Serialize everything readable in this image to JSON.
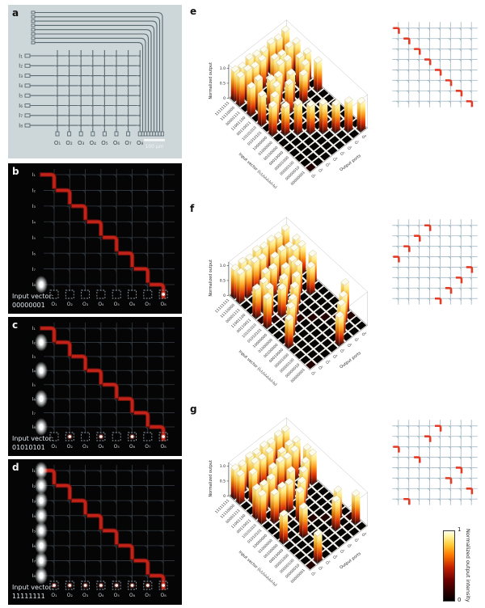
{
  "panels": {
    "a": {
      "label": "a",
      "input_labels": [
        "I₁",
        "I₂",
        "I₃",
        "I₄",
        "I₅",
        "I₆",
        "I₇",
        "I₈"
      ],
      "output_labels": [
        "O₁",
        "O₂",
        "O₃",
        "O₄",
        "O₅",
        "O₆",
        "O₇",
        "O₈"
      ],
      "scale_bar": "100 μm"
    },
    "b": {
      "label": "b",
      "caption": "Input vector:",
      "vector": "00000001",
      "input_labels": [
        "I₁",
        "I₂",
        "I₃",
        "I₄",
        "I₅",
        "I₆",
        "I₇",
        "I₈"
      ],
      "output_labels": [
        "O₁",
        "O₂",
        "O₃",
        "O₄",
        "O₅",
        "O₆",
        "O₇",
        "O₈"
      ],
      "active_inputs": [
        8
      ],
      "active_outputs": [
        8
      ]
    },
    "c": {
      "label": "c",
      "caption": "Input vector:",
      "vector": "01010101",
      "input_labels": [
        "I₁",
        "I₂",
        "I₃",
        "I₄",
        "I₅",
        "I₆",
        "I₇",
        "I₈"
      ],
      "output_labels": [
        "O₁",
        "O₂",
        "O₃",
        "O₄",
        "O₅",
        "O₆",
        "O₇",
        "O₈"
      ],
      "active_inputs": [
        2,
        4,
        6,
        8
      ],
      "active_outputs": [
        2,
        4,
        6,
        8
      ]
    },
    "d": {
      "label": "d",
      "caption": "Input vector:",
      "vector": "11111111",
      "input_labels": [
        "I₁",
        "I₂",
        "I₃",
        "I₄",
        "I₅",
        "I₆",
        "I₇",
        "I₈"
      ],
      "output_labels": [
        "O₁",
        "O₂",
        "O₃",
        "O₄",
        "O₅",
        "O₆",
        "O₇",
        "O₈"
      ],
      "active_inputs": [
        1,
        2,
        3,
        4,
        5,
        6,
        7,
        8
      ],
      "active_outputs": [
        1,
        2,
        3,
        4,
        5,
        6,
        7,
        8
      ]
    }
  },
  "chart_data": [
    {
      "label": "e",
      "type": "bar3d",
      "zlabel": "Normalized output",
      "ylabel": "Input vector (I₁I₂I₃I₄I₅I₆I₇I₈)",
      "xlabel": "Output ports",
      "zticks": [
        "0",
        "0.5",
        "1.0"
      ],
      "zlim": [
        0,
        1
      ],
      "output_ports": [
        "O₁",
        "O₂",
        "O₃",
        "O₄",
        "O₅",
        "O₆",
        "O₇",
        "O₈"
      ],
      "input_vectors": [
        "11111111",
        "11110000",
        "00001111",
        "11001100",
        "00110011",
        "10101010",
        "01010101",
        "10000000",
        "01000000",
        "00100000",
        "00010000",
        "00001000",
        "00000100",
        "00000010",
        "00000001"
      ],
      "routing_permutation": [
        1,
        2,
        3,
        4,
        5,
        6,
        7,
        8
      ],
      "values": [
        [
          0.97,
          0.9,
          1.0,
          0.93,
          0.88,
          0.96,
          0.91,
          0.99
        ],
        [
          0.95,
          0.98,
          0.9,
          0.94,
          0,
          0,
          0,
          0
        ],
        [
          0,
          0,
          0,
          0,
          0.97,
          0.91,
          0.99,
          0.93
        ],
        [
          0.92,
          0.99,
          0,
          0,
          0.95,
          0.9,
          0,
          0
        ],
        [
          0,
          0,
          0.96,
          0.9,
          0,
          0,
          0.97,
          0.92
        ],
        [
          0.98,
          0,
          0.92,
          0,
          0.95,
          0,
          0.9,
          0
        ],
        [
          0,
          0.93,
          0,
          0.97,
          0,
          0.91,
          0,
          0.96
        ],
        [
          0.96,
          0,
          0,
          0,
          0,
          0,
          0,
          0
        ],
        [
          0,
          0.92,
          0,
          0,
          0,
          0,
          0,
          0
        ],
        [
          0,
          0,
          0.98,
          0,
          0,
          0,
          0,
          0
        ],
        [
          0,
          0,
          0,
          0.91,
          0,
          0,
          0,
          0
        ],
        [
          0,
          0,
          0,
          0,
          0.95,
          0,
          0,
          0
        ],
        [
          0,
          0,
          0,
          0,
          0,
          0.9,
          0,
          0
        ],
        [
          0,
          0,
          0,
          0,
          0,
          0,
          0.97,
          0
        ],
        [
          0,
          0,
          0,
          0,
          0,
          0,
          0,
          0.93
        ]
      ],
      "inset_bends": [
        [
          1,
          1
        ],
        [
          2,
          2
        ],
        [
          3,
          3
        ],
        [
          4,
          4
        ],
        [
          5,
          5
        ],
        [
          6,
          6
        ],
        [
          7,
          7
        ],
        [
          8,
          8
        ]
      ]
    },
    {
      "label": "f",
      "type": "bar3d",
      "zlabel": "Normalized output",
      "ylabel": "Input vector (I₁I₂I₃I₄I₅I₆I₇I₈)",
      "xlabel": "Output ports",
      "zticks": [
        "0",
        "0.5",
        "1.0"
      ],
      "zlim": [
        0,
        1
      ],
      "output_ports": [
        "O₁",
        "O₂",
        "O₃",
        "O₄",
        "O₅",
        "O₆",
        "O₇",
        "O₈"
      ],
      "input_vectors": [
        "11111111",
        "11110000",
        "00001111",
        "11001100",
        "00110011",
        "10101010",
        "01010101",
        "10000000",
        "01000000",
        "00100000",
        "00010000",
        "00001000",
        "00000100",
        "00000010",
        "00000001"
      ],
      "routing_permutation": [
        4,
        3,
        2,
        1,
        8,
        7,
        6,
        5
      ],
      "values": [
        [
          0.93,
          0.97,
          0.9,
          0.99,
          0.92,
          0.96,
          0.88,
          0.95
        ],
        [
          0.96,
          0.91,
          0.98,
          0.9,
          0,
          0,
          0,
          0
        ],
        [
          0,
          0,
          0,
          0,
          0.93,
          0.97,
          0.9,
          0.96
        ],
        [
          0,
          0,
          0.95,
          0.9,
          0,
          0,
          0.97,
          0.91
        ],
        [
          0.94,
          0.98,
          0,
          0,
          0.91,
          0.96,
          0,
          0
        ],
        [
          0,
          0.95,
          0,
          0.9,
          0,
          0.98,
          0,
          0.92
        ],
        [
          0.97,
          0,
          0.91,
          0,
          0.95,
          0,
          0.89,
          0
        ],
        [
          0,
          0,
          0,
          0.95,
          0,
          0,
          0,
          0
        ],
        [
          0,
          0,
          0.9,
          0,
          0,
          0,
          0,
          0
        ],
        [
          0,
          0.97,
          0,
          0,
          0,
          0,
          0,
          0
        ],
        [
          0.92,
          0,
          0,
          0,
          0,
          0,
          0,
          0
        ],
        [
          0,
          0,
          0,
          0,
          0,
          0,
          0,
          0.96
        ],
        [
          0,
          0,
          0,
          0,
          0,
          0,
          0.91,
          0
        ],
        [
          0,
          0,
          0,
          0,
          0,
          0.98,
          0,
          0
        ],
        [
          0,
          0,
          0,
          0,
          0.93,
          0,
          0,
          0
        ]
      ],
      "inset_bends": [
        [
          1,
          4
        ],
        [
          2,
          3
        ],
        [
          3,
          2
        ],
        [
          4,
          1
        ],
        [
          5,
          8
        ],
        [
          6,
          7
        ],
        [
          7,
          6
        ],
        [
          8,
          5
        ]
      ]
    },
    {
      "label": "g",
      "type": "bar3d",
      "zlabel": "Normalized output",
      "ylabel": "Input vector (I₁I₂I₃I₄I₅I₆I₇I₈)",
      "xlabel": "Output ports",
      "zticks": [
        "0",
        "0.5",
        "1.0"
      ],
      "zlim": [
        0,
        1
      ],
      "output_ports": [
        "O₁",
        "O₂",
        "O₃",
        "O₄",
        "O₅",
        "O₆",
        "O₇",
        "O₈"
      ],
      "input_vectors": [
        "11111111",
        "11110000",
        "00001111",
        "11001100",
        "00110011",
        "10101010",
        "01010101",
        "10000000",
        "01000000",
        "00100000",
        "00010000",
        "00001000",
        "00000100",
        "00000010",
        "00000001"
      ],
      "routing_permutation": [
        5,
        4,
        1,
        3,
        7,
        6,
        8,
        2
      ],
      "values": [
        [
          0.95,
          0.9,
          0.98,
          0.92,
          0.97,
          0.89,
          0.96,
          0.93
        ],
        [
          0.93,
          0,
          0.97,
          0.91,
          0.95,
          0,
          0,
          0
        ],
        [
          0,
          0.96,
          0,
          0,
          0,
          0.92,
          0.98,
          0.9
        ],
        [
          0,
          0,
          0,
          0.94,
          0.97,
          0.9,
          0.95,
          0
        ],
        [
          0.96,
          0.91,
          0.93,
          0,
          0,
          0,
          0,
          0.98
        ],
        [
          0.92,
          0,
          0,
          0,
          0.96,
          0,
          0.9,
          0.97
        ],
        [
          0,
          0.94,
          0.98,
          0.91,
          0,
          0.95,
          0,
          0
        ],
        [
          0,
          0,
          0,
          0,
          0.94,
          0,
          0,
          0
        ],
        [
          0,
          0,
          0,
          0.97,
          0,
          0,
          0,
          0
        ],
        [
          0.91,
          0,
          0,
          0,
          0,
          0,
          0,
          0
        ],
        [
          0,
          0,
          0.95,
          0,
          0,
          0,
          0,
          0
        ],
        [
          0,
          0,
          0,
          0,
          0,
          0,
          0.92,
          0
        ],
        [
          0,
          0,
          0,
          0,
          0,
          0.96,
          0,
          0
        ],
        [
          0,
          0,
          0,
          0,
          0,
          0,
          0,
          0.94
        ],
        [
          0,
          0.9,
          0,
          0,
          0,
          0,
          0,
          0
        ]
      ],
      "inset_bends": [
        [
          1,
          5
        ],
        [
          2,
          4
        ],
        [
          3,
          1
        ],
        [
          4,
          3
        ],
        [
          5,
          7
        ],
        [
          6,
          6
        ],
        [
          7,
          8
        ],
        [
          8,
          2
        ]
      ]
    }
  ],
  "colorbar": {
    "title": "Normalized output intensity",
    "max": "1",
    "min": "0"
  }
}
